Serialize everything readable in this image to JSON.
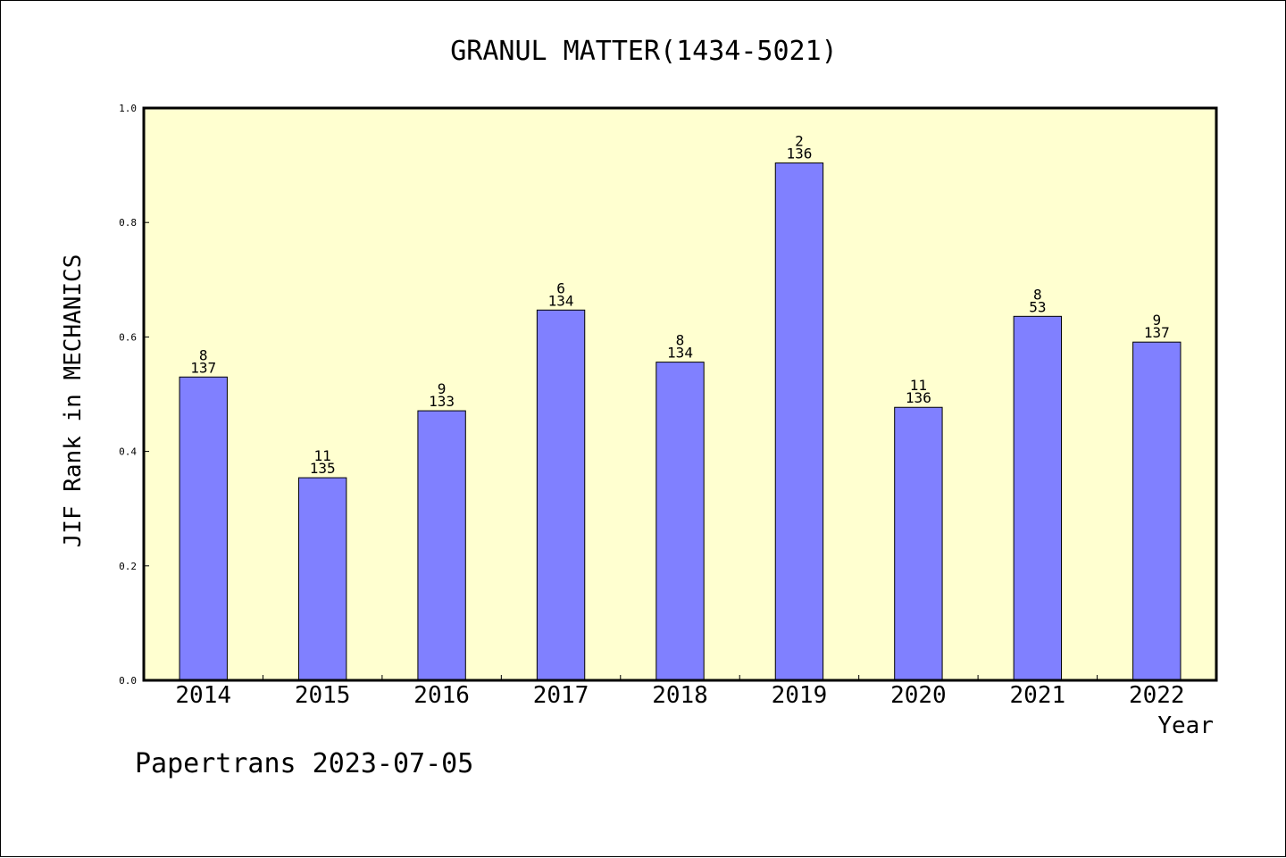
{
  "chart_data": {
    "type": "bar",
    "title": "GRANUL MATTER(1434-5021)",
    "xlabel": "Year",
    "ylabel": "JIF Rank in MECHANICS",
    "ylim": [
      0,
      1.0
    ],
    "y_ticks": [
      "0.0",
      "0.2",
      "0.4",
      "0.6",
      "0.8",
      "1.0"
    ],
    "grid": false,
    "categories": [
      "2014",
      "2015",
      "2016",
      "2017",
      "2018",
      "2019",
      "2020",
      "2021",
      "2022"
    ],
    "values": [
      0.53,
      0.354,
      0.471,
      0.647,
      0.556,
      0.904,
      0.477,
      0.636,
      0.591
    ],
    "rank_labels": [
      "8",
      "11",
      "9",
      "6",
      "8",
      "2",
      "11",
      "8",
      "9"
    ],
    "total_labels": [
      "137",
      "135",
      "133",
      "134",
      "134",
      "136",
      "136",
      "53",
      "137"
    ],
    "colors": {
      "bar": "#8080ff",
      "plot_bg": "#ffffd0"
    }
  },
  "footer": "Papertrans 2023-07-05"
}
